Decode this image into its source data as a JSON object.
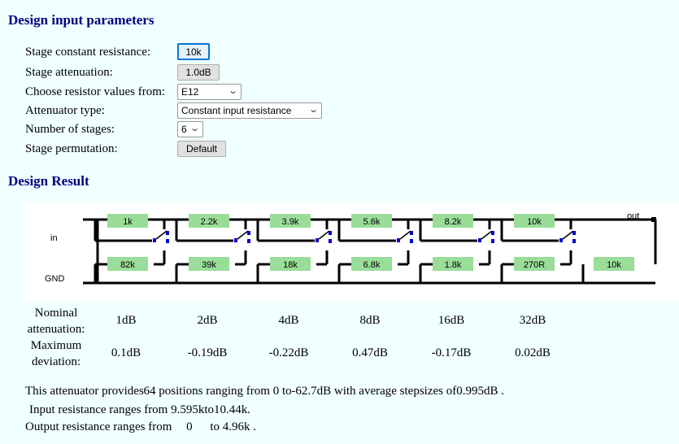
{
  "headings": {
    "design": "Design input parameters",
    "result": "Design Result"
  },
  "params": {
    "resistance_label": "Stage constant resistance:",
    "resistance_value": "10k",
    "attenuation_label": "Stage attenuation:",
    "attenuation_value": "1.0dB",
    "series_label": "Choose resistor values from:",
    "series_value": "E12",
    "type_label": "Attenuator type:",
    "type_value": "Constant input resistance",
    "stages_label": "Number of stages:",
    "stages_value": "6",
    "perm_label": "Stage permutation:",
    "perm_value": "Default"
  },
  "circuit": {
    "in_label": "in",
    "gnd_label": "GND",
    "out_label": "out",
    "series_resistors": [
      "1k",
      "2.2k",
      "3.9k",
      "5.6k",
      "8.2k",
      "10k"
    ],
    "shunt_resistors": [
      "82k",
      "39k",
      "18k",
      "6.8k",
      "1.8k",
      "270R"
    ],
    "output_resistor": "10k",
    "colors": {
      "resistor": "#99dd99",
      "wire": "#000000",
      "switch": "#0000cc"
    }
  },
  "result_table": {
    "nominal_label": "Nominal attenuation:",
    "deviation_label": "Maximum deviation:",
    "stages": [
      {
        "nominal": "1dB",
        "deviation": "0.1dB"
      },
      {
        "nominal": "2dB",
        "deviation": "-0.19dB"
      },
      {
        "nominal": "4dB",
        "deviation": "-0.22dB"
      },
      {
        "nominal": "8dB",
        "deviation": "0.47dB"
      },
      {
        "nominal": "16dB",
        "deviation": "-0.17dB"
      },
      {
        "nominal": "32dB",
        "deviation": "0.02dB"
      }
    ]
  },
  "summary": {
    "line1_a": "This attenuator provides",
    "positions": "64",
    "line1_b": "positions ranging from 0 to",
    "range_db": "-62.7dB",
    "line1_c": "with average stepsizes of",
    "avg_step": "0.995dB",
    "dot": ".",
    "line2_a": "Input resistance ranges from",
    "rin_min": "9.595k",
    "to": "to",
    "rin_max": "10.44k",
    "line3_a": "Output resistance ranges from",
    "rout_min": "0",
    "rout_max": "4.96k"
  }
}
